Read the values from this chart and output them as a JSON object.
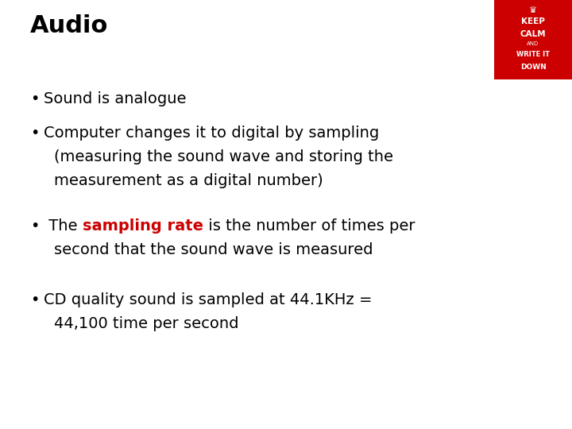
{
  "title": "Audio",
  "title_fontsize": 22,
  "title_fontweight": "bold",
  "background_color": "#ffffff",
  "text_color": "#000000",
  "highlight_color": "#cc0000",
  "fontsize": 14,
  "badge_bg": "#cc0000",
  "badge_lines": [
    "KEEP",
    "CALM",
    "AND",
    "WRITE IT",
    "DOWN"
  ],
  "badge_line_fontsizes": [
    7.5,
    7.5,
    5,
    6,
    6.5
  ],
  "badge_line_fontweights": [
    "bold",
    "bold",
    "normal",
    "bold",
    "bold"
  ],
  "bullet1": "Sound is analogue",
  "bullet2_line1": "Computer changes it to digital by sampling",
  "bullet2_line2": "(measuring the sound wave and storing the",
  "bullet2_line3": "measurement as a digital number)",
  "bullet3_pre": " The ",
  "bullet3_highlight": "sampling rate",
  "bullet3_post": " is the number of times per",
  "bullet3_line2": "second that the sound wave is measured",
  "bullet4_line1": "CD quality sound is sampled at 44.1KHz =",
  "bullet4_line2": "44,100 time per second"
}
